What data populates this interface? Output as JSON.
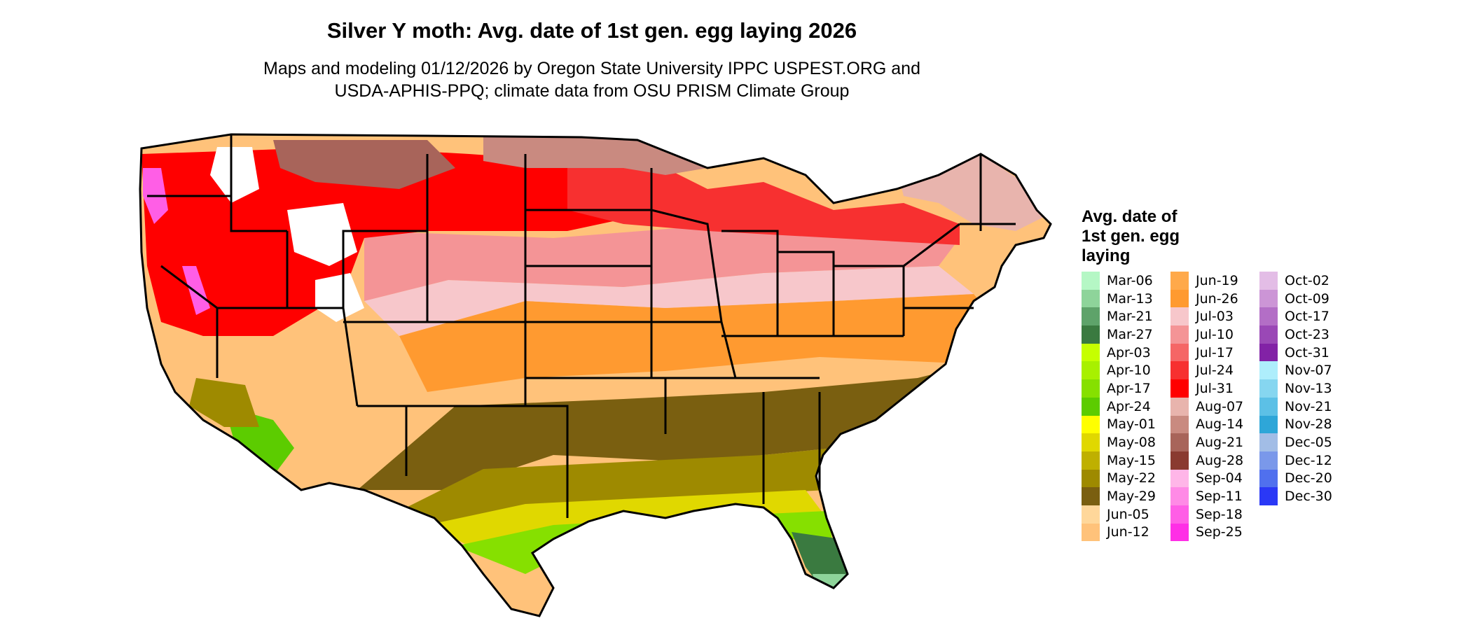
{
  "title": "Silver Y moth: Avg. date of 1st gen. egg laying 2026",
  "subtitle_line1": "Maps and modeling 01/12/2026 by Oregon State University IPPC USPEST.ORG and",
  "subtitle_line2": "USDA-APHIS-PPQ; climate data from OSU PRISM Climate Group",
  "legend": {
    "title": "Avg. date of\n1st gen. egg\nlaying",
    "columns": [
      [
        {
          "label": "Mar-06",
          "color": "#b5f7c5"
        },
        {
          "label": "Mar-13",
          "color": "#8ed49a"
        },
        {
          "label": "Mar-21",
          "color": "#5ea36a"
        },
        {
          "label": "Mar-27",
          "color": "#3a7a40"
        },
        {
          "label": "Apr-03",
          "color": "#c6ff00"
        },
        {
          "label": "Apr-10",
          "color": "#a8f000"
        },
        {
          "label": "Apr-17",
          "color": "#86e000"
        },
        {
          "label": "Apr-24",
          "color": "#5ccc00"
        },
        {
          "label": "May-01",
          "color": "#ffff00"
        },
        {
          "label": "May-08",
          "color": "#e0d800"
        },
        {
          "label": "May-15",
          "color": "#bfb000"
        },
        {
          "label": "May-22",
          "color": "#9e8a00"
        },
        {
          "label": "May-29",
          "color": "#7a5f10"
        },
        {
          "label": "Jun-05",
          "color": "#ffd79a"
        },
        {
          "label": "Jun-12",
          "color": "#ffc27a"
        }
      ],
      [
        {
          "label": "Jun-19",
          "color": "#ffa94a"
        },
        {
          "label": "Jun-26",
          "color": "#ff9a30"
        },
        {
          "label": "Jul-03",
          "color": "#f7c7cb"
        },
        {
          "label": "Jul-10",
          "color": "#f49496"
        },
        {
          "label": "Jul-17",
          "color": "#f56666"
        },
        {
          "label": "Jul-24",
          "color": "#f73030"
        },
        {
          "label": "Jul-31",
          "color": "#ff0000"
        },
        {
          "label": "Aug-07",
          "color": "#e8b4ad"
        },
        {
          "label": "Aug-14",
          "color": "#c98a80"
        },
        {
          "label": "Aug-21",
          "color": "#a8645a"
        },
        {
          "label": "Aug-28",
          "color": "#8a3a30"
        },
        {
          "label": "Sep-04",
          "color": "#ffb6e8"
        },
        {
          "label": "Sep-11",
          "color": "#ff8ae6"
        },
        {
          "label": "Sep-18",
          "color": "#ff5ee6"
        },
        {
          "label": "Sep-25",
          "color": "#ff2ee6"
        }
      ],
      [
        {
          "label": "Oct-02",
          "color": "#e3bde6"
        },
        {
          "label": "Oct-09",
          "color": "#cc95d6"
        },
        {
          "label": "Oct-17",
          "color": "#b36ec6"
        },
        {
          "label": "Oct-23",
          "color": "#9a48b6"
        },
        {
          "label": "Oct-31",
          "color": "#8222a6"
        },
        {
          "label": "Nov-07",
          "color": "#aeeefc"
        },
        {
          "label": "Nov-13",
          "color": "#86d6f0"
        },
        {
          "label": "Nov-21",
          "color": "#5cc0e6"
        },
        {
          "label": "Nov-28",
          "color": "#2ea6d8"
        },
        {
          "label": "Dec-05",
          "color": "#a2bde6"
        },
        {
          "label": "Dec-12",
          "color": "#7a98ea"
        },
        {
          "label": "Dec-20",
          "color": "#5070ee"
        },
        {
          "label": "Dec-30",
          "color": "#2a38f6"
        }
      ]
    ]
  },
  "map": {
    "outline_color": "#000000",
    "zone_colors": {
      "florida_south": "#3a7a40",
      "florida_tip": "#8ed49a",
      "gulf_green": "#86e000",
      "gulf_yellow": "#e0d800",
      "olive": "#7a5f10",
      "olive_light": "#9e8a00",
      "tan": "#ffc27a",
      "orange": "#ff9a30",
      "pink_light": "#f7c7cb",
      "pink": "#f49496",
      "red": "#ff0000",
      "red_mid": "#f73030",
      "brown": "#c98a80",
      "brown_light": "#e8b4ad",
      "brown_dark": "#a8645a",
      "magenta": "#ff5ee6",
      "white": "#ffffff",
      "desert_green": "#5ccc00",
      "desert_olive": "#9e8a00"
    }
  }
}
